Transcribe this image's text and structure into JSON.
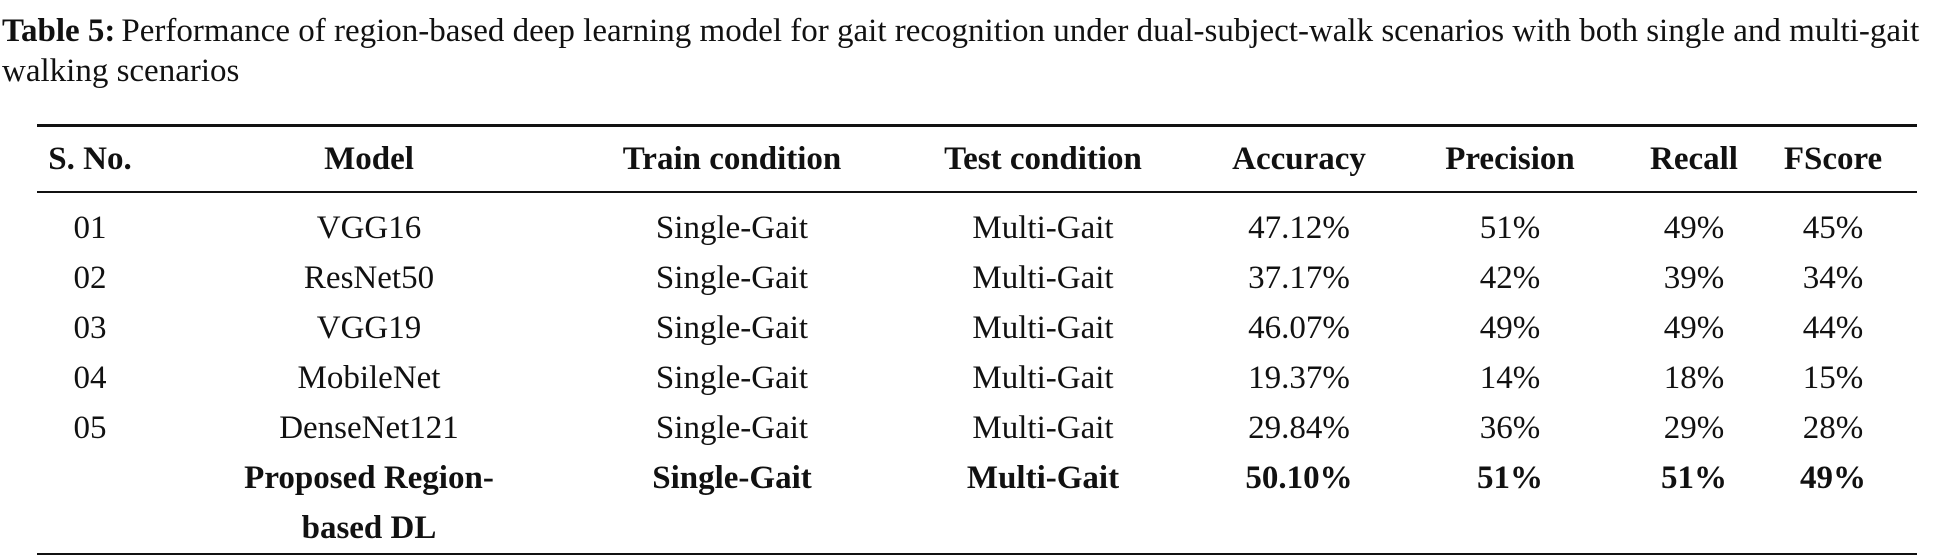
{
  "caption": {
    "label": "Table 5:",
    "text": "Performance of region-based deep learning model for gait recognition under dual-subject-walk scenarios with both single and multi-gait walking scenarios"
  },
  "table": {
    "header": [
      "S. No.",
      "Model",
      "Train condition",
      "Test condition",
      "Accuracy",
      "Precision",
      "Recall",
      "FScore"
    ],
    "rows": [
      [
        "01",
        "VGG16",
        "Single-Gait",
        "Multi-Gait",
        "47.12%",
        "51%",
        "49%",
        "45%"
      ],
      [
        "02",
        "ResNet50",
        "Single-Gait",
        "Multi-Gait",
        "37.17%",
        "42%",
        "39%",
        "34%"
      ],
      [
        "03",
        "VGG19",
        "Single-Gait",
        "Multi-Gait",
        "46.07%",
        "49%",
        "49%",
        "44%"
      ],
      [
        "04",
        "MobileNet",
        "Single-Gait",
        "Multi-Gait",
        "19.37%",
        "14%",
        "18%",
        "15%"
      ],
      [
        "05",
        "DenseNet121",
        "Single-Gait",
        "Multi-Gait",
        "29.84%",
        "36%",
        "29%",
        "28%"
      ],
      [
        null,
        "Proposed Region-based DL",
        "Single-Gait",
        "Multi-Gait",
        "50.10%",
        "51%",
        "51%",
        "49%"
      ]
    ]
  }
}
